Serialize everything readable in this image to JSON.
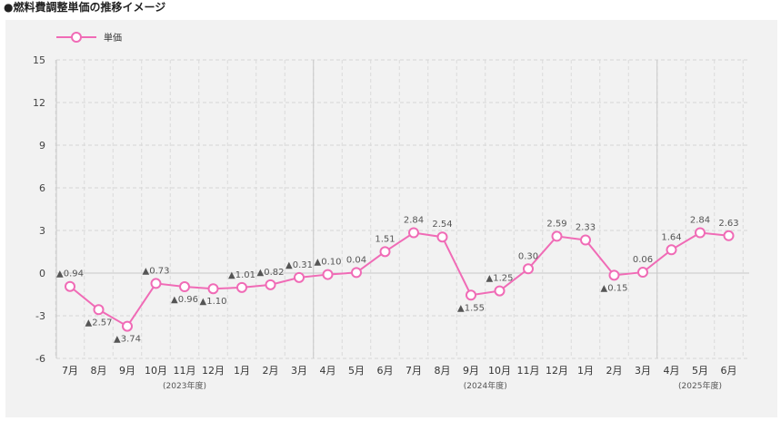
{
  "heading": "●燃料費調整単価の推移イメージ",
  "colors": {
    "line": "#f06bb6",
    "marker_fill": "#ffffff",
    "panel_bg": "#f2f2f2"
  },
  "chart_data": {
    "type": "line",
    "title": "",
    "xlabel": "",
    "ylabel": "",
    "ylim": [
      -6,
      15
    ],
    "yticks": [
      "15",
      "12",
      "9",
      "6",
      "3",
      "0",
      "-3",
      "-6"
    ],
    "ytick_values": [
      15,
      12,
      9,
      6,
      3,
      0,
      -3,
      -6
    ],
    "grid": true,
    "legend": "top-left",
    "categories": [
      "7月",
      "8月",
      "9月",
      "10月",
      "11月",
      "12月",
      "1月",
      "2月",
      "3月",
      "4月",
      "5月",
      "6月",
      "7月",
      "8月",
      "9月",
      "10月",
      "11月",
      "12月",
      "1月",
      "2月",
      "3月",
      "4月",
      "5月",
      "6月"
    ],
    "fiscal_years": [
      {
        "label": "(2023年度)",
        "start": 0,
        "end": 8
      },
      {
        "label": "(2024年度)",
        "start": 9,
        "end": 20
      },
      {
        "label": "(2025年度)",
        "start": 21,
        "end": 23
      }
    ],
    "series": [
      {
        "name": "単価",
        "values": [
          -0.94,
          -2.57,
          -3.74,
          -0.73,
          -0.96,
          -1.1,
          -1.01,
          -0.82,
          -0.31,
          -0.1,
          0.04,
          1.51,
          2.84,
          2.54,
          -1.55,
          -1.25,
          0.3,
          2.59,
          2.33,
          -0.15,
          0.06,
          1.64,
          2.84,
          2.63
        ],
        "data_labels": [
          "▲0.94",
          "▲2.57",
          "▲3.74",
          "▲0.73",
          "▲0.96",
          "▲1.10",
          "▲1.01",
          "▲0.82",
          "▲0.31",
          "▲0.10",
          "0.04",
          "1.51",
          "2.84",
          "2.54",
          "▲1.55",
          "▲1.25",
          "0.30",
          "2.59",
          "2.33",
          "▲0.15",
          "0.06",
          "1.64",
          "2.84",
          "2.63"
        ]
      }
    ]
  }
}
